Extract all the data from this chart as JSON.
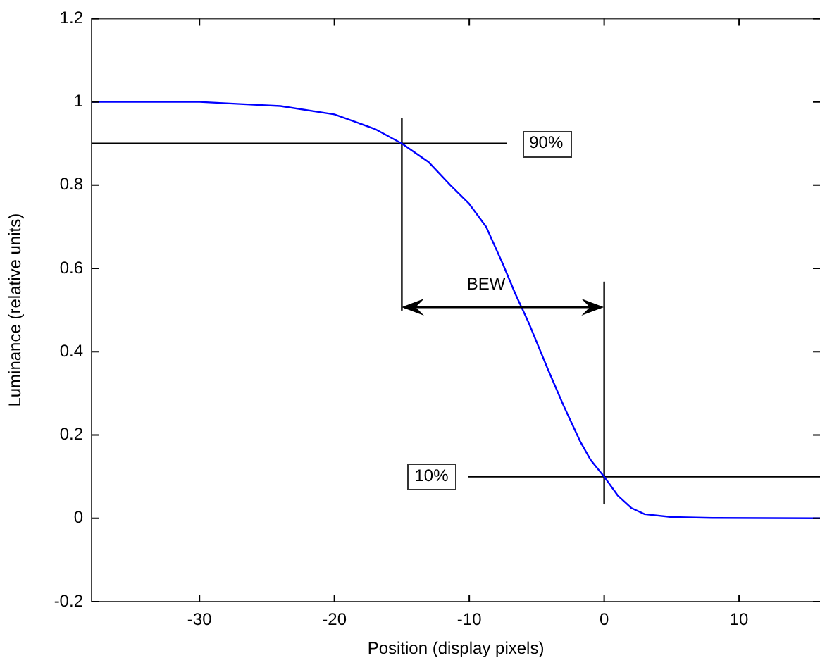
{
  "chart_data": {
    "type": "line",
    "xlabel": "Position (display pixels)",
    "ylabel": "Luminance (relative units)",
    "xlim": [
      -38,
      16
    ],
    "xticks": [
      -30,
      -20,
      -10,
      0,
      10
    ],
    "ylim": [
      -0.2,
      1.2
    ],
    "yticks": [
      -0.2,
      0,
      0.2,
      0.4,
      0.6,
      0.8,
      1,
      1.2
    ],
    "grid": false,
    "legend": false,
    "marker": "none",
    "line_style": "solid",
    "series": [
      {
        "color": "#0000ff",
        "x": [
          -38,
          -30,
          -27,
          -24,
          -20,
          -17,
          -15,
          -13,
          -11.4,
          -10,
          -8.75,
          -7.5,
          -6.6,
          -5.6,
          -4.2,
          -3,
          -1.8,
          -1,
          0,
          1,
          2,
          3,
          5,
          8,
          16
        ],
        "values": [
          1,
          1,
          0.995,
          0.99,
          0.97,
          0.935,
          0.9,
          0.855,
          0.8,
          0.755,
          0.7,
          0.61,
          0.54,
          0.47,
          0.36,
          0.27,
          0.186,
          0.14,
          0.1,
          0.055,
          0.025,
          0.01,
          0.003,
          0.001,
          0
        ]
      },
      {
        "color": "#000000",
        "x": [
          -38,
          -7.2
        ],
        "values": [
          0.9,
          0.9
        ]
      },
      {
        "color": "#000000",
        "x": [
          -10.1,
          16
        ],
        "values": [
          0.1,
          0.1
        ]
      },
      {
        "color": "#000000",
        "x": [
          -15,
          -15
        ],
        "values": [
          0.96,
          0.5
        ]
      },
      {
        "color": "#000000",
        "x": [
          0,
          0
        ],
        "values": [
          0.567,
          0.035
        ]
      }
    ],
    "annotations": [
      {
        "text": "90%",
        "x": -4.3,
        "y": 0.9
      },
      {
        "text": "10%",
        "x": -12.8,
        "y": 0.1
      },
      "BEW"
    ]
  }
}
